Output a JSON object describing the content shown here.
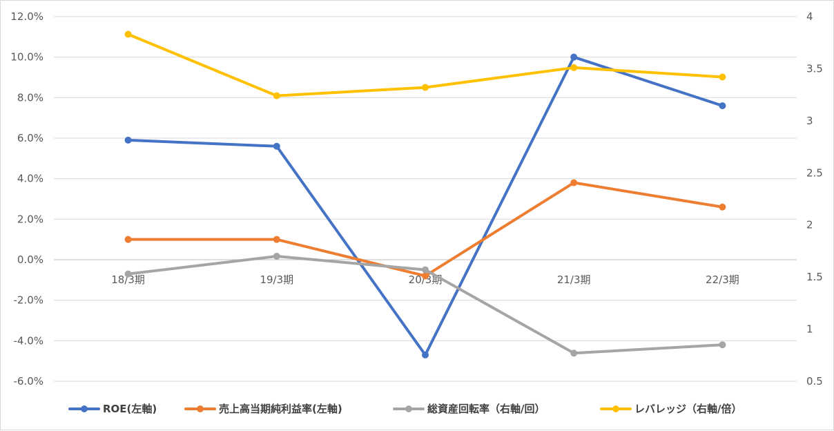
{
  "chart_data": {
    "type": "line",
    "categories": [
      "18/3期",
      "19/3期",
      "20/3期",
      "21/3期",
      "22/3期"
    ],
    "left_axis": {
      "min": -0.06,
      "max": 0.12,
      "step": 0.02,
      "ticks": [
        "-6.0%",
        "-4.0%",
        "-2.0%",
        "0.0%",
        "2.0%",
        "4.0%",
        "6.0%",
        "8.0%",
        "10.0%",
        "12.0%"
      ]
    },
    "right_axis": {
      "min": 0.5,
      "max": 4,
      "step": 0.5,
      "ticks": [
        "0.5",
        "1",
        "1.5",
        "2",
        "2.5",
        "3",
        "3.5",
        "4"
      ]
    },
    "grid": true,
    "legend_position": "bottom",
    "series": [
      {
        "name": "ROE(左軸)",
        "axis": "left",
        "color": "#4472C4",
        "values": [
          0.059,
          0.056,
          -0.047,
          0.1,
          0.076
        ]
      },
      {
        "name": "売上高当期純利益率(左軸)",
        "axis": "left",
        "color": "#ED7D31",
        "values": [
          0.01,
          0.01,
          -0.008,
          0.038,
          0.026
        ]
      },
      {
        "name": "総資産回転率（右軸/回）",
        "axis": "right",
        "color": "#A5A5A5",
        "values": [
          1.53,
          1.7,
          1.57,
          0.77,
          0.85
        ]
      },
      {
        "name": "レバレッジ（右軸/倍）",
        "axis": "right",
        "color": "#FFC000",
        "values": [
          3.83,
          3.24,
          3.32,
          3.51,
          3.42
        ]
      }
    ]
  }
}
